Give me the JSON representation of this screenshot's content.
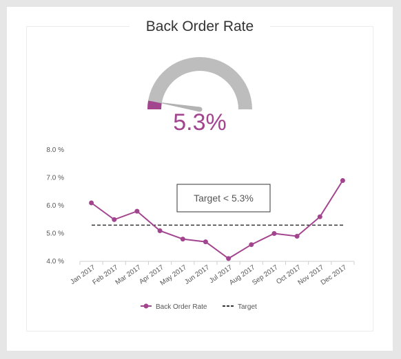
{
  "title": "Back Order Rate",
  "kpi": {
    "value_text": "5.3%",
    "value": 5.3,
    "gauge_min": 0,
    "gauge_max": 100
  },
  "colors": {
    "accent": "#a3448f",
    "gauge_track": "#bdbdbd",
    "needle": "#b3b3b3",
    "target_line": "#333333",
    "axis": "#cfcfcf",
    "text": "#555555"
  },
  "chart_data": {
    "type": "line",
    "categories": [
      "Jan 2017",
      "Feb 2017",
      "Mar 2017",
      "Apr 2017",
      "May 2017",
      "Jun 2017",
      "Jul 2017",
      "Aug 2017",
      "Sep 2017",
      "Oct 2017",
      "Nov 2017",
      "Dec 2017"
    ],
    "series": [
      {
        "name": "Back Order Rate",
        "values": [
          6.1,
          5.5,
          5.8,
          5.1,
          4.8,
          4.7,
          4.1,
          4.6,
          5.0,
          4.9,
          5.6,
          6.9
        ]
      }
    ],
    "target": {
      "name": "Target",
      "value": 5.3
    },
    "annotation": "Target < 5.3%",
    "ylim": [
      4.0,
      8.0
    ],
    "yticks": [
      "4.0 %",
      "5.0 %",
      "6.0 %",
      "7.0 %",
      "8.0 %"
    ],
    "grid": false,
    "legend": "bottom"
  },
  "legend": {
    "series_label": "Back Order Rate",
    "target_label": "Target"
  }
}
